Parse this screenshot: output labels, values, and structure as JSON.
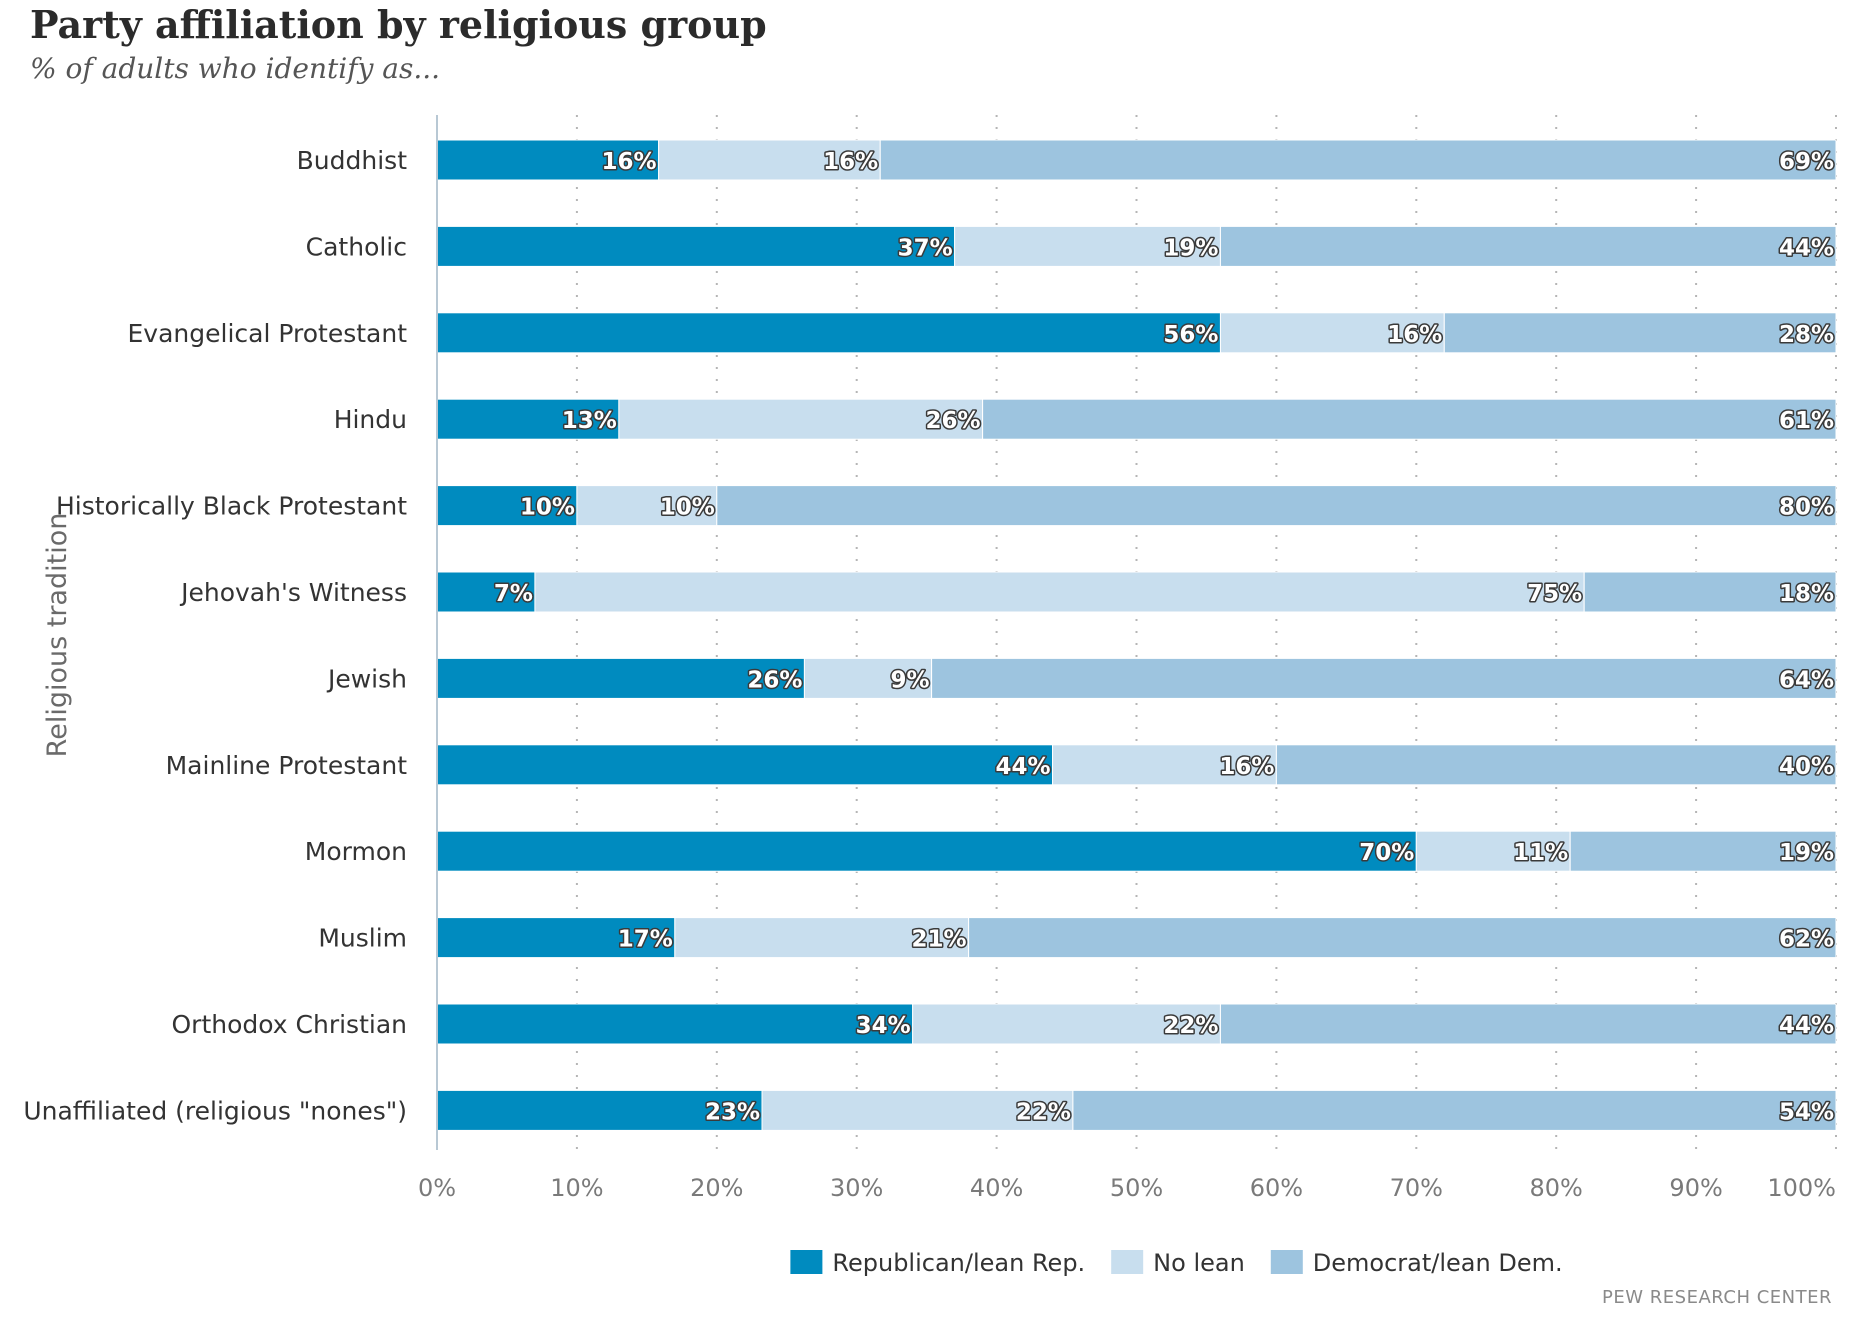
{
  "title": "Party affiliation by religious group",
  "subtitle": "% of adults who identify as...",
  "source": "PEW RESEARCH CENTER",
  "colors": {
    "republican": "#008bbf",
    "no_lean": "#c8deee",
    "democrat": "#9dc4df"
  },
  "chart_data": {
    "type": "bar",
    "orientation": "horizontal",
    "stacked": true,
    "ylabel": "Religious tradition",
    "xlabel": "",
    "xlim": [
      0,
      100
    ],
    "x_ticks": [
      0,
      10,
      20,
      30,
      40,
      50,
      60,
      70,
      80,
      90,
      100
    ],
    "x_tick_labels": [
      "0%",
      "10%",
      "20%",
      "30%",
      "40%",
      "50%",
      "60%",
      "70%",
      "80%",
      "90%",
      "100%"
    ],
    "grid": "vertical dotted",
    "legend_position": "bottom-center",
    "categories": [
      "Buddhist",
      "Catholic",
      "Evangelical Protestant",
      "Hindu",
      "Historically Black Protestant",
      "Jehovah's Witness",
      "Jewish",
      "Mainline Protestant",
      "Mormon",
      "Muslim",
      "Orthodox Christian",
      "Unaffiliated (religious \"nones\")"
    ],
    "series": [
      {
        "name": "Republican/lean Rep.",
        "color_key": "republican",
        "values": [
          16,
          37,
          56,
          13,
          10,
          7,
          26,
          44,
          70,
          17,
          34,
          23
        ]
      },
      {
        "name": "No lean",
        "color_key": "no_lean",
        "values": [
          16,
          19,
          16,
          26,
          10,
          75,
          9,
          16,
          11,
          21,
          22,
          22
        ]
      },
      {
        "name": "Democrat/lean Dem.",
        "color_key": "democrat",
        "values": [
          69,
          44,
          28,
          61,
          80,
          18,
          64,
          40,
          19,
          62,
          44,
          54
        ]
      }
    ]
  }
}
